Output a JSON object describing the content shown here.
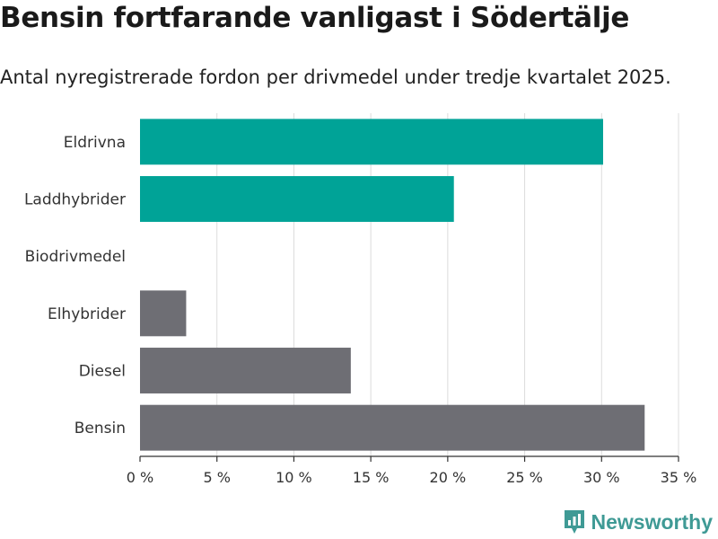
{
  "header": {
    "title": "Bensin fortfarande vanligast i Södertälje",
    "subtitle": "Antal nyregistrerade fordon per drivmedel under tredje kvartalet 2025."
  },
  "brand": {
    "name": "Newsworthy",
    "color": "#3f9a95"
  },
  "chart_data": {
    "type": "bar",
    "orientation": "horizontal",
    "categories": [
      "Eldrivna",
      "Laddhybrider",
      "Biodrivmedel",
      "Elhybrider",
      "Diesel",
      "Bensin"
    ],
    "values": [
      30.1,
      20.4,
      0,
      3.0,
      13.7,
      32.8
    ],
    "bar_colors": [
      "#00a397",
      "#00a397",
      "#00a397",
      "#6e6e74",
      "#6e6e74",
      "#6e6e74"
    ],
    "xlim": [
      0,
      35
    ],
    "xticks": [
      0,
      5,
      10,
      15,
      20,
      25,
      30,
      35
    ],
    "tick_suffix": " %",
    "title": "Bensin fortfarande vanligast i Södertälje",
    "xlabel": "",
    "ylabel": "",
    "grid": true
  }
}
